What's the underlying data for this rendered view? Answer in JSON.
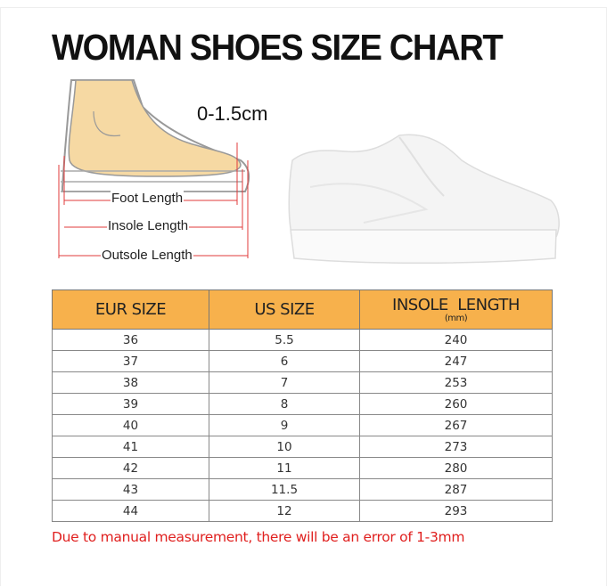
{
  "title": "WOMAN SHOES SIZE CHART",
  "diagram": {
    "tolerance": "0-1.5cm",
    "foot_length": "Foot Length",
    "insole_length": "Insole Length",
    "outsole_length": "Outsole Length"
  },
  "table": {
    "headers": [
      "EUR SIZE",
      "US SIZE",
      "INSOLE  LENGTH"
    ],
    "header_unit": "(mm)",
    "header_color": "#f7b14c",
    "rows": [
      [
        "36",
        "5.5",
        "240"
      ],
      [
        "37",
        "6",
        "247"
      ],
      [
        "38",
        "7",
        "253"
      ],
      [
        "39",
        "8",
        "260"
      ],
      [
        "40",
        "9",
        "267"
      ],
      [
        "41",
        "10",
        "273"
      ],
      [
        "42",
        "11",
        "280"
      ],
      [
        "43",
        "11.5",
        "287"
      ],
      [
        "44",
        "12",
        "293"
      ]
    ]
  },
  "note": "Due to manual measurement, there will be an error of 1-3mm",
  "note_color": "#e0201f"
}
